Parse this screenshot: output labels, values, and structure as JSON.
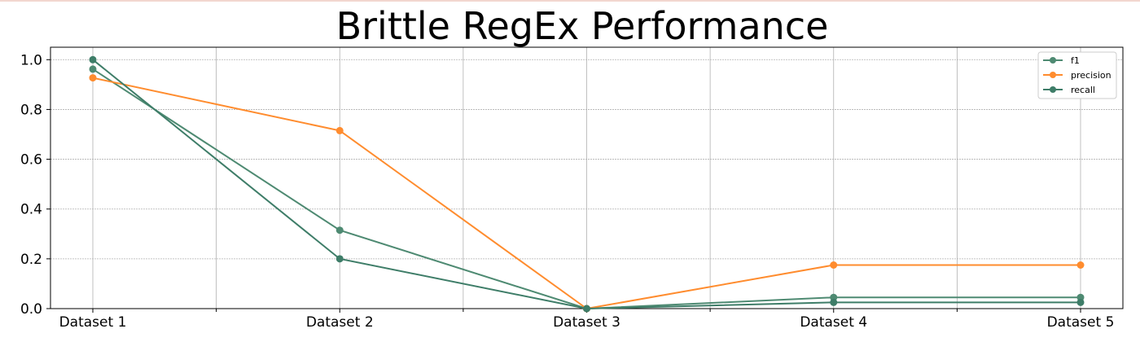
{
  "chart_data": {
    "type": "line",
    "title": "Brittle RegEx Performance",
    "xlabel": "",
    "ylabel": "",
    "categories": [
      "Dataset 1",
      "Dataset 2",
      "Dataset 3",
      "Dataset 4",
      "Dataset 5"
    ],
    "ylim": [
      0,
      1.05
    ],
    "yticks": [
      "0.0",
      "0.2",
      "0.4",
      "0.6",
      "0.8",
      "1.0"
    ],
    "grid": true,
    "legend_position": "top-right",
    "series": [
      {
        "name": "f1",
        "color": "#4e8a72",
        "values": [
          0.962,
          0.315,
          0.0,
          0.045,
          0.045
        ]
      },
      {
        "name": "precision",
        "color": "#ff8c2e",
        "values": [
          0.927,
          0.715,
          0.0,
          0.175,
          0.175
        ]
      },
      {
        "name": "recall",
        "color": "#3e7d68",
        "values": [
          1.0,
          0.2,
          0.0,
          0.025,
          0.025
        ]
      }
    ]
  }
}
